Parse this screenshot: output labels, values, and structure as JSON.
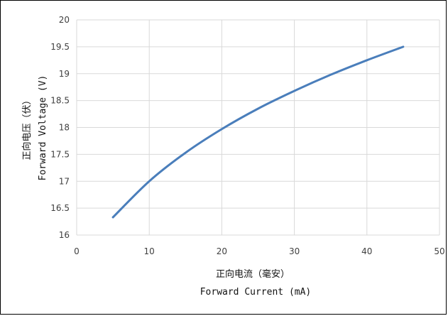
{
  "chart_data": {
    "type": "line",
    "x": [
      5,
      10,
      15,
      20,
      25,
      30,
      35,
      40,
      45
    ],
    "series": [
      {
        "values": [
          16.33,
          17.0,
          17.53,
          17.97,
          18.35,
          18.68,
          18.98,
          19.25,
          19.5
        ]
      }
    ],
    "xlabel_cn": "正向电流（毫安）",
    "xlabel_en": "Forward Current (mA)",
    "ylabel_cn": "正向电压（伏）",
    "ylabel_en": "Forward Voltage (V)",
    "xlim": [
      0,
      50
    ],
    "ylim": [
      16,
      20
    ],
    "xticks": [
      "0",
      "10",
      "20",
      "30",
      "40",
      "50"
    ],
    "yticks": [
      "16",
      "16.5",
      "17",
      "17.5",
      "18",
      "18.5",
      "19",
      "19.5",
      "20"
    ],
    "grid": true,
    "line_color": "#4a7ebb"
  }
}
